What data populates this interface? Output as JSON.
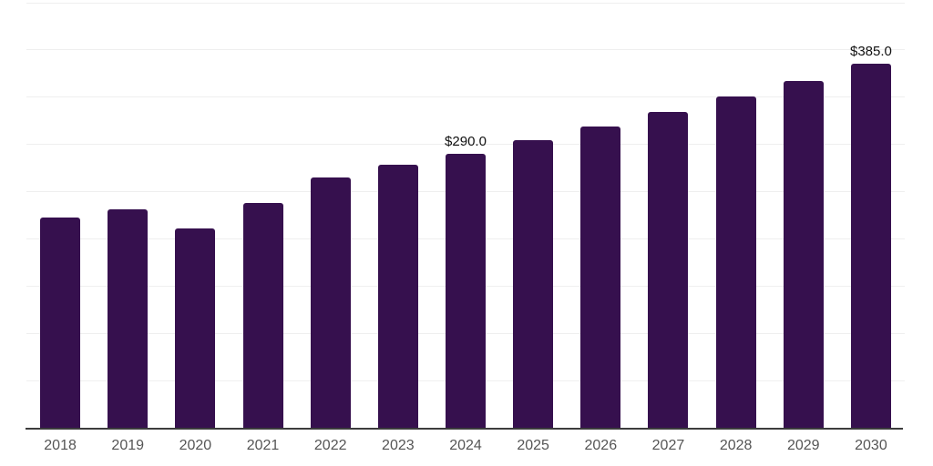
{
  "window": {
    "background_color": "#FFFFFF"
  },
  "chart_data": {
    "type": "bar",
    "title": "",
    "xlabel": "",
    "ylabel": "",
    "categories": [
      "2018",
      "2019",
      "2020",
      "2021",
      "2022",
      "2023",
      "2024",
      "2025",
      "2026",
      "2027",
      "2028",
      "2029",
      "2030"
    ],
    "values": [
      222,
      231,
      211,
      238,
      265,
      278,
      290,
      304,
      319,
      334,
      350,
      367,
      385
    ],
    "annotations": [
      {
        "category": "2024",
        "text": "$290.0"
      },
      {
        "category": "2030",
        "text": "$385.0"
      }
    ],
    "ylim": [
      0,
      450
    ],
    "grid_step": 50,
    "grid": "horizontal",
    "legend": "none",
    "y_tick_labels_visible": false,
    "bar_color": "#36104E",
    "grid_color": "#EFEFEF",
    "axis_line_color": "#3C3C3C",
    "x_tick_label_color": "#555555",
    "data_label_color": "#111111"
  }
}
